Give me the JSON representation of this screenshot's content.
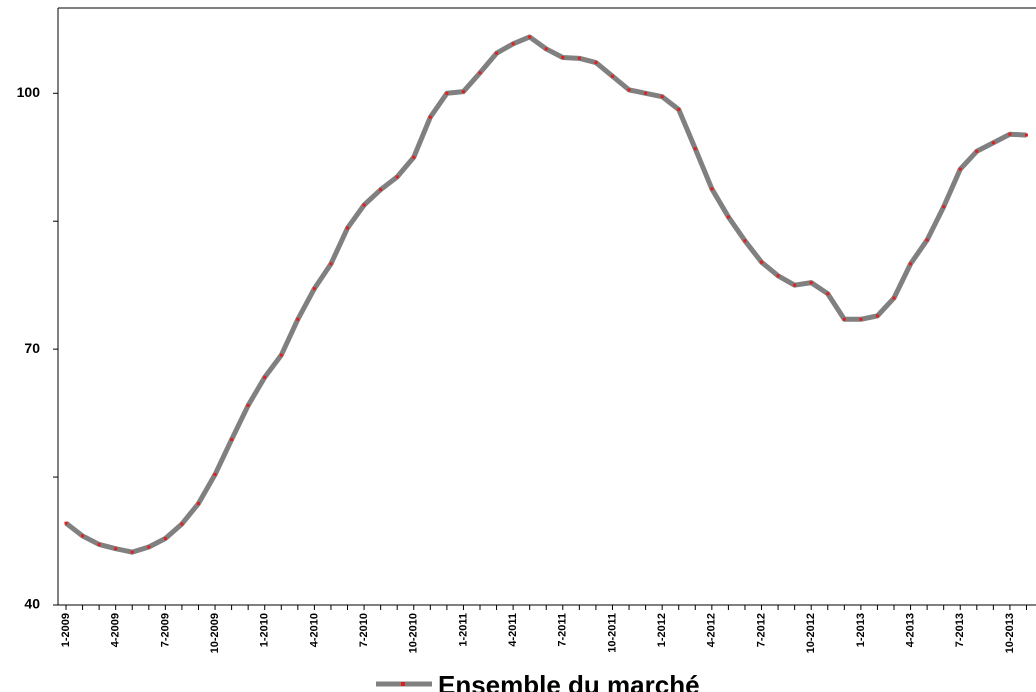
{
  "chart_data": {
    "type": "line",
    "categories": [
      "1-2009",
      null,
      null,
      "4-2009",
      null,
      null,
      "7-2009",
      null,
      null,
      "10-2009",
      null,
      null,
      "1-2010",
      null,
      null,
      "4-2010",
      null,
      null,
      "7-2010",
      null,
      null,
      "10-2010",
      null,
      null,
      "1-2011",
      null,
      null,
      "4-2011",
      null,
      null,
      "7-2011",
      null,
      null,
      "10-2011",
      null,
      null,
      "1-2012",
      null,
      null,
      "4-2012",
      null,
      null,
      "7-2012",
      null,
      null,
      "10-2012",
      null,
      null,
      "1-2013",
      null,
      null,
      "4-2013",
      null,
      null,
      "7-2013",
      null,
      null,
      "10-2013",
      null
    ],
    "series": [
      {
        "name": "Ensemble du marché",
        "color": "#808080",
        "marker_color": "#e02020",
        "values": [
          49.6,
          48.1,
          47.1,
          46.6,
          46.2,
          46.8,
          47.8,
          49.5,
          51.9,
          55.3,
          59.4,
          63.4,
          66.7,
          69.3,
          73.5,
          77.1,
          80.0,
          84.2,
          86.9,
          88.7,
          90.2,
          92.5,
          97.2,
          100.0,
          100.2,
          102.4,
          104.7,
          105.8,
          106.6,
          105.2,
          104.2,
          104.1,
          103.6,
          102.0,
          100.4,
          100.0,
          99.6,
          98.1,
          93.5,
          88.8,
          85.5,
          82.7,
          80.2,
          78.6,
          77.5,
          77.8,
          76.5,
          73.5,
          73.5,
          73.9,
          76.0,
          80.0,
          82.8,
          86.7,
          91.1,
          93.2,
          94.2,
          95.2,
          95.1
        ]
      }
    ],
    "ylim": [
      40,
      110
    ],
    "yticks": [
      40,
      70,
      100
    ],
    "minor_yticks": [
      55,
      85
    ],
    "legend": "bottom"
  }
}
